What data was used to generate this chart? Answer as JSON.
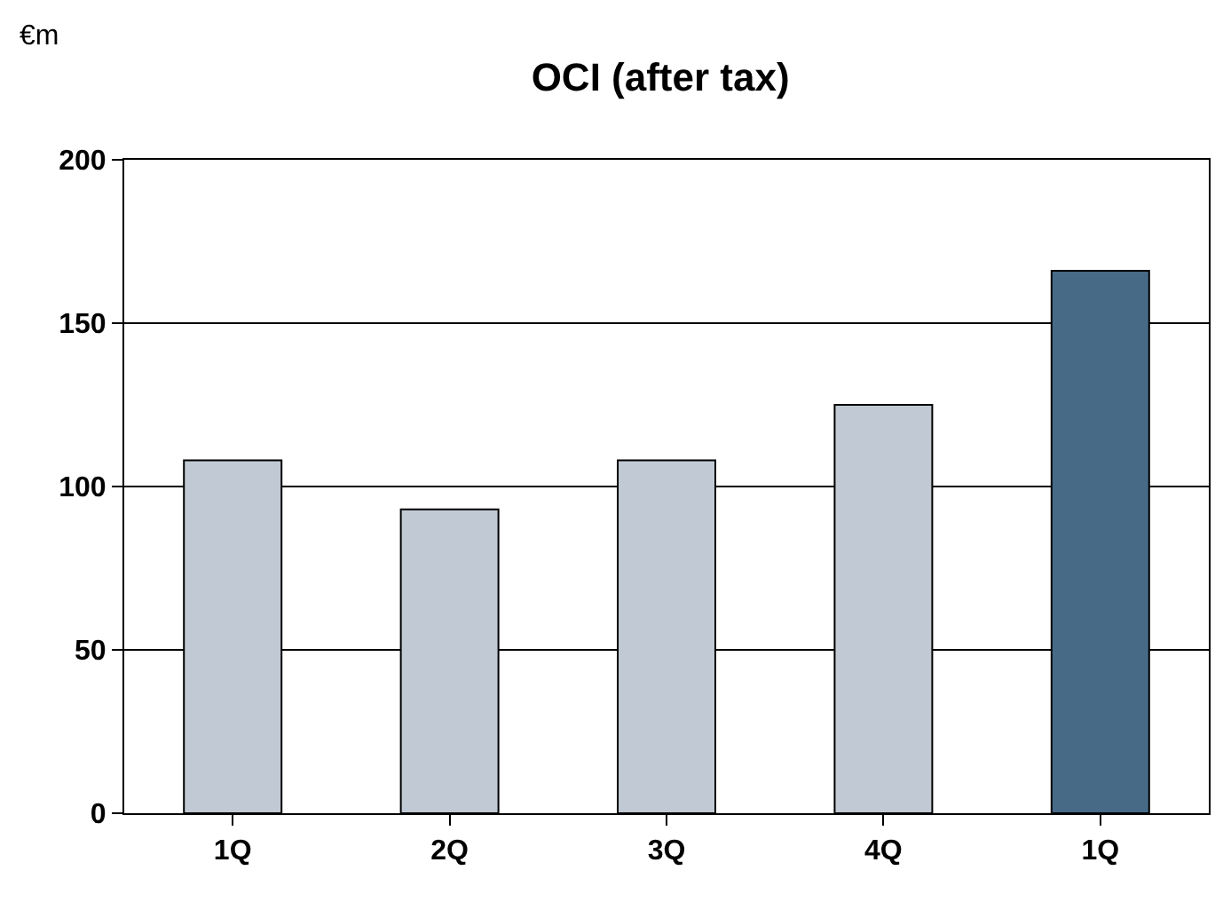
{
  "chart_data": {
    "type": "bar",
    "title": "OCI (after tax)",
    "ylabel": "€m",
    "categories": [
      "1Q",
      "2Q",
      "3Q",
      "4Q",
      "1Q"
    ],
    "values": [
      108,
      93,
      108,
      125,
      166
    ],
    "colors": [
      "#c0c9d4",
      "#c0c9d4",
      "#c0c9d4",
      "#c0c9d4",
      "#476a87"
    ],
    "ylim": [
      0,
      200
    ],
    "yticks": [
      0,
      50,
      100,
      150,
      200
    ],
    "grid": "y"
  }
}
